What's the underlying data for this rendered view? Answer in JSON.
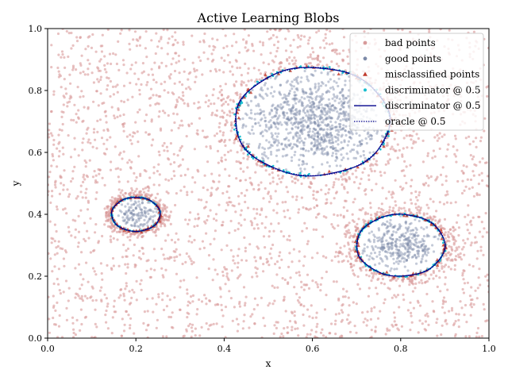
{
  "chart_data": {
    "type": "scatter",
    "title": "Active Learning Blobs",
    "xlabel": "x",
    "ylabel": "y",
    "xlim": [
      0.0,
      1.0
    ],
    "ylim": [
      0.0,
      1.0
    ],
    "xticks": [
      "0.0",
      "0.2",
      "0.4",
      "0.6",
      "0.8",
      "1.0"
    ],
    "yticks": [
      "0.0",
      "0.2",
      "0.4",
      "0.6",
      "0.8",
      "1.0"
    ],
    "grid": false,
    "legend_position": "top-right",
    "blobs": [
      {
        "cx": 0.2,
        "cy": 0.4,
        "rx": 0.055,
        "ry": 0.055
      },
      {
        "cx": 0.6,
        "cy": 0.7,
        "rx": 0.175,
        "ry": 0.175
      },
      {
        "cx": 0.8,
        "cy": 0.3,
        "rx": 0.1,
        "ry": 0.1
      }
    ],
    "series": [
      {
        "name": "bad points",
        "marker": "circle",
        "color": "#d89a9a",
        "style": "scatter-uniform-outside-blobs"
      },
      {
        "name": "good points",
        "marker": "circle",
        "color": "#7d8aa8",
        "style": "scatter-inside-blobs"
      },
      {
        "name": "misclassified points",
        "marker": "triangle",
        "color": "#c0392b",
        "style": "scatter-on-boundaries"
      },
      {
        "name": "discriminator @ 0.5",
        "marker": "dot",
        "color": "#17becf",
        "style": "scatter-on-boundaries"
      },
      {
        "name": "discriminator @ 0.5",
        "marker": "line",
        "color": "#00008b",
        "style": "solid-boundary"
      },
      {
        "name": "oracle @ 0.5",
        "marker": "line",
        "color": "#00008b",
        "style": "dotted-boundary"
      }
    ]
  }
}
